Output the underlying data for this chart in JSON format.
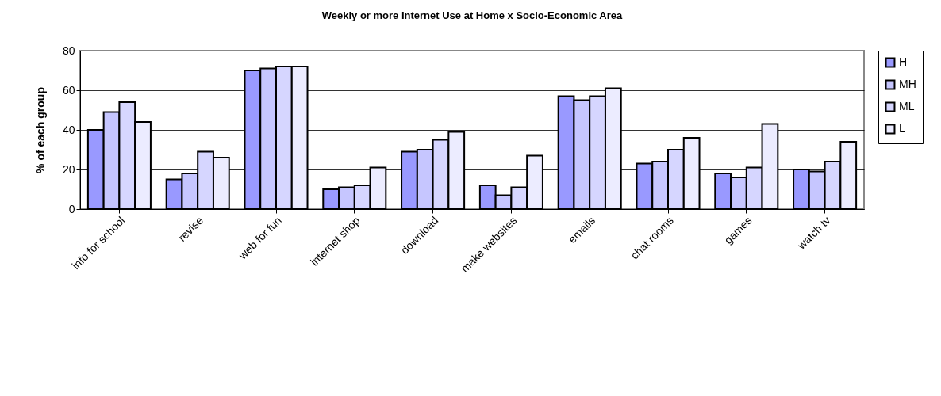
{
  "chart_data": {
    "type": "bar",
    "title": "Weekly or more Internet Use at Home x Socio-Economic Area",
    "ylabel": "% of each group",
    "categories": [
      "info for school",
      "revise",
      "web for fun",
      "internet shop",
      "download",
      "make websites",
      "emails",
      "chat rooms",
      "games",
      "watch tv"
    ],
    "series": [
      {
        "name": "H",
        "color": "#9999ff",
        "values": [
          40,
          15,
          70,
          10,
          29,
          12,
          57,
          23,
          18,
          20
        ]
      },
      {
        "name": "MH",
        "color": "#c6c6ff",
        "values": [
          49,
          18,
          71,
          11,
          30,
          7,
          55,
          24,
          16,
          19
        ]
      },
      {
        "name": "ML",
        "color": "#d6d6ff",
        "values": [
          54,
          29,
          72,
          12,
          35,
          11,
          57,
          30,
          21,
          24
        ]
      },
      {
        "name": "L",
        "color": "#ececff",
        "values": [
          44,
          26,
          72,
          21,
          39,
          27,
          61,
          36,
          43,
          34
        ]
      }
    ],
    "ylim": [
      0,
      80
    ],
    "yticks": [
      0,
      20,
      40,
      60,
      80
    ],
    "grid": "y",
    "legend": "right"
  }
}
